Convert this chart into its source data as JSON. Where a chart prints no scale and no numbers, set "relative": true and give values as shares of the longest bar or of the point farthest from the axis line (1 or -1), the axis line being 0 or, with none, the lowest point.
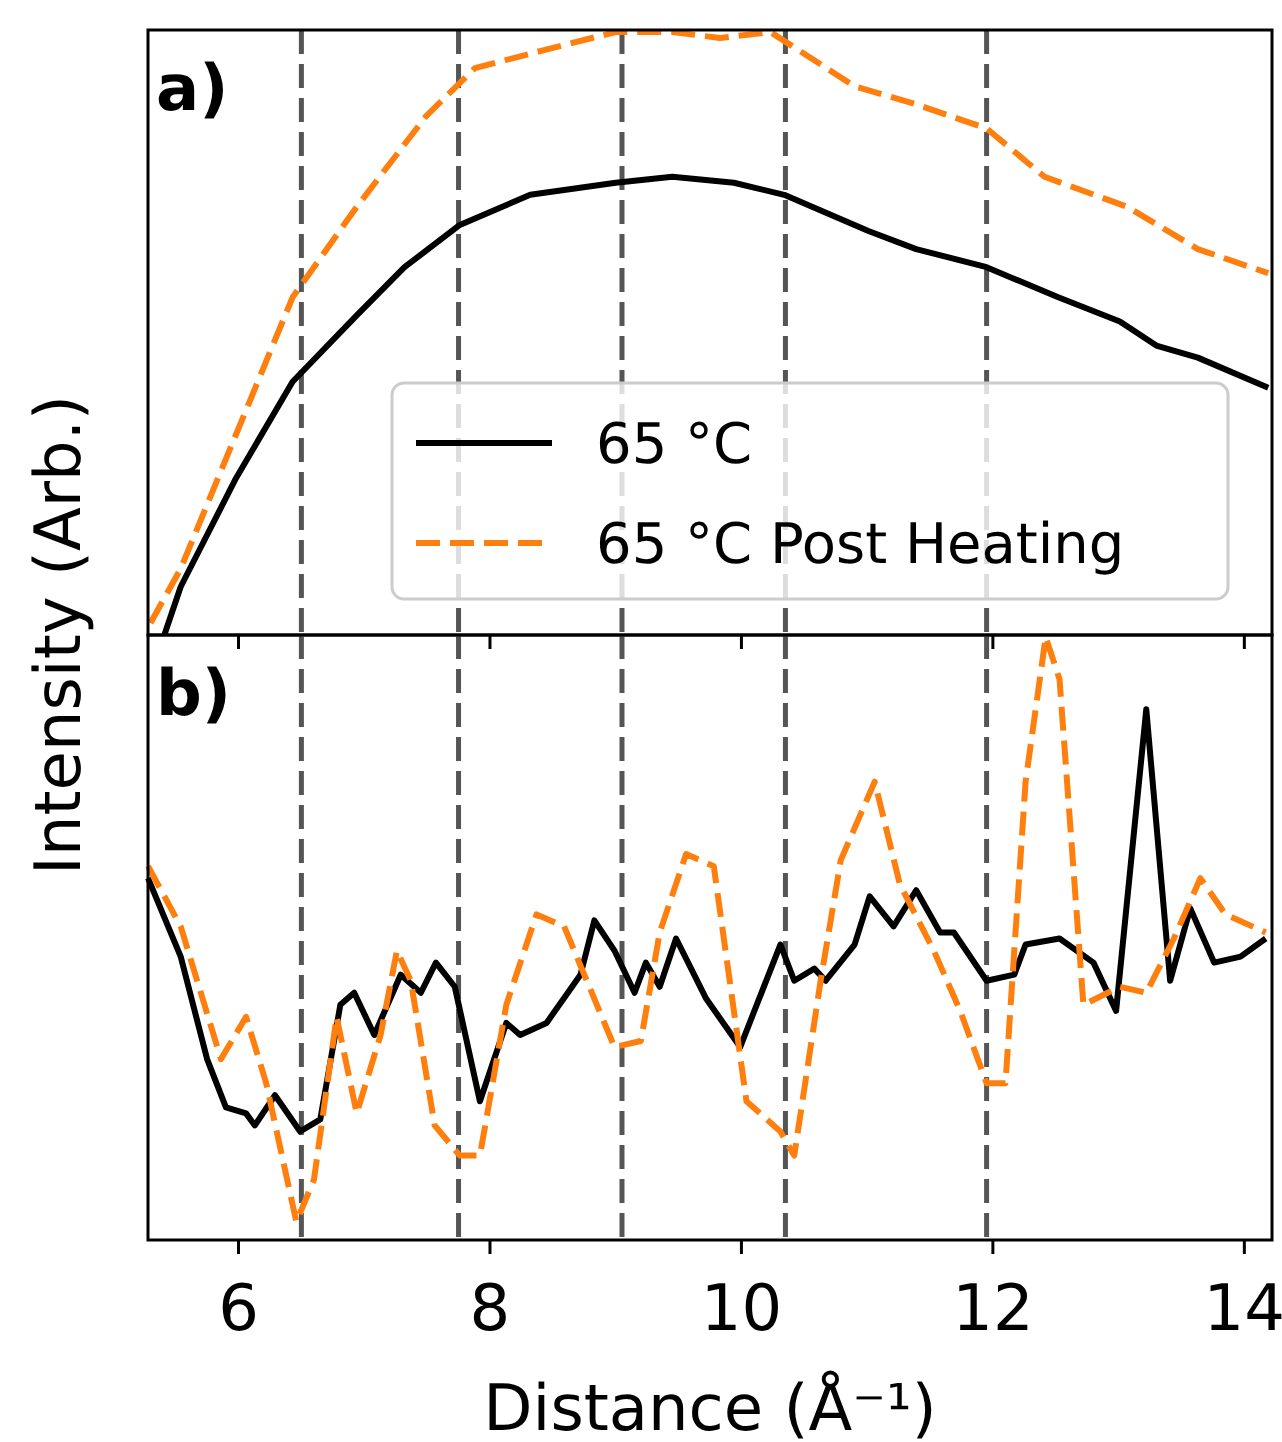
{
  "chart_data": [
    {
      "type": "line",
      "relative": true,
      "ylabel": "Intensity (Arb.)",
      "annotations": [
        "a)"
      ],
      "xlim": [
        5.28,
        14.22
      ],
      "xticks": [
        6,
        8,
        10,
        12,
        14
      ],
      "tick_labels": false,
      "legend": "bottom right",
      "ref_lines": [
        {
          "axis": "x",
          "value": 6.5,
          "color": "#555555",
          "line_style": "dashed"
        },
        {
          "axis": "x",
          "value": 7.75,
          "color": "#555555",
          "line_style": "dashed"
        },
        {
          "axis": "x",
          "value": 9.05,
          "color": "#555555",
          "line_style": "dashed"
        },
        {
          "axis": "x",
          "value": 10.35,
          "color": "#555555",
          "line_style": "dashed"
        },
        {
          "axis": "x",
          "value": 11.95,
          "color": "#555555",
          "line_style": "dashed"
        }
      ],
      "series": [
        {
          "name": "65 °C",
          "color": "#000000",
          "line_style": "solid",
          "x": [
            5.41,
            5.54,
            5.98,
            6.43,
            6.94,
            7.32,
            7.76,
            8.32,
            9.0,
            9.45,
            9.94,
            10.34,
            11.01,
            11.39,
            11.95,
            12.52,
            13.01,
            13.3,
            13.63,
            14.19
          ],
          "values": [
            0,
            0.08,
            0.26,
            0.42,
            0.53,
            0.61,
            0.68,
            0.73,
            0.75,
            0.76,
            0.75,
            0.73,
            0.67,
            0.64,
            0.61,
            0.56,
            0.52,
            0.48,
            0.46,
            0.41
          ]
        },
        {
          "name": "65 °C Post Heating",
          "color": "#ff7f0e",
          "line_style": "dashed",
          "x": [
            5.3,
            5.54,
            6.43,
            6.94,
            7.49,
            7.88,
            8.43,
            9.0,
            9.45,
            9.83,
            10.23,
            10.9,
            11.39,
            11.95,
            12.41,
            13.07,
            13.63,
            14.19
          ],
          "values": [
            0.02,
            0.11,
            0.56,
            0.71,
            0.86,
            0.94,
            0.97,
            1.0,
            1.0,
            0.99,
            1.0,
            0.91,
            0.88,
            0.84,
            0.76,
            0.71,
            0.64,
            0.6
          ]
        }
      ]
    },
    {
      "type": "line",
      "relative": true,
      "xlabel": "Distance (Å⁻¹)",
      "annotations": [
        "b)"
      ],
      "xlim": [
        5.28,
        14.22
      ],
      "xticks": [
        6,
        8,
        10,
        12,
        14
      ],
      "tick_labels": "x",
      "ref_lines": [
        {
          "axis": "x",
          "value": 6.5,
          "color": "#555555",
          "line_style": "dashed"
        },
        {
          "axis": "x",
          "value": 7.75,
          "color": "#555555",
          "line_style": "dashed"
        },
        {
          "axis": "x",
          "value": 9.05,
          "color": "#555555",
          "line_style": "dashed"
        },
        {
          "axis": "x",
          "value": 10.35,
          "color": "#555555",
          "line_style": "dashed"
        },
        {
          "axis": "x",
          "value": 11.95,
          "color": "#555555",
          "line_style": "dashed"
        }
      ],
      "series": [
        {
          "color": "#000000",
          "line_style": "solid",
          "x": [
            5.28,
            5.54,
            5.75,
            5.9,
            6.06,
            6.13,
            6.29,
            6.49,
            6.65,
            6.81,
            6.92,
            7.08,
            7.29,
            7.45,
            7.57,
            7.72,
            7.92,
            8.13,
            8.24,
            8.45,
            8.72,
            8.83,
            8.99,
            9.15,
            9.24,
            9.35,
            9.48,
            9.72,
            9.99,
            10.31,
            10.42,
            10.58,
            10.67,
            10.9,
            11.02,
            11.21,
            11.39,
            11.58,
            11.69,
            11.95,
            12.17,
            12.26,
            12.53,
            12.8,
            12.98,
            13.22,
            13.41,
            13.57,
            13.76,
            13.97,
            14.17
          ],
          "values": [
            0.6,
            0.47,
            0.3,
            0.22,
            0.21,
            0.19,
            0.24,
            0.18,
            0.2,
            0.39,
            0.41,
            0.34,
            0.44,
            0.41,
            0.46,
            0.42,
            0.23,
            0.36,
            0.34,
            0.36,
            0.44,
            0.53,
            0.48,
            0.41,
            0.46,
            0.42,
            0.5,
            0.4,
            0.32,
            0.49,
            0.43,
            0.45,
            0.43,
            0.49,
            0.57,
            0.52,
            0.58,
            0.51,
            0.51,
            0.43,
            0.44,
            0.49,
            0.5,
            0.46,
            0.38,
            0.88,
            0.43,
            0.55,
            0.46,
            0.47,
            0.5
          ]
        },
        {
          "color": "#ff7f0e",
          "line_style": "dashed",
          "x": [
            5.28,
            5.54,
            5.86,
            6.06,
            6.22,
            6.46,
            6.6,
            6.78,
            6.94,
            7.13,
            7.26,
            7.37,
            7.56,
            7.76,
            7.92,
            8.13,
            8.37,
            8.59,
            8.77,
            8.99,
            9.2,
            9.35,
            9.56,
            9.78,
            10.04,
            10.31,
            10.42,
            10.63,
            10.79,
            11.06,
            11.26,
            11.53,
            11.74,
            11.95,
            12.1,
            12.26,
            12.42,
            12.53,
            12.72,
            13.01,
            13.22,
            13.44,
            13.65,
            13.85,
            14.17
          ],
          "values": [
            0.62,
            0.52,
            0.3,
            0.37,
            0.26,
            0.03,
            0.1,
            0.37,
            0.21,
            0.34,
            0.48,
            0.43,
            0.19,
            0.14,
            0.14,
            0.39,
            0.54,
            0.52,
            0.43,
            0.32,
            0.33,
            0.51,
            0.64,
            0.62,
            0.23,
            0.18,
            0.14,
            0.43,
            0.63,
            0.76,
            0.59,
            0.48,
            0.38,
            0.26,
            0.26,
            0.76,
            1.0,
            0.93,
            0.39,
            0.42,
            0.41,
            0.5,
            0.6,
            0.54,
            0.51
          ]
        }
      ]
    }
  ]
}
